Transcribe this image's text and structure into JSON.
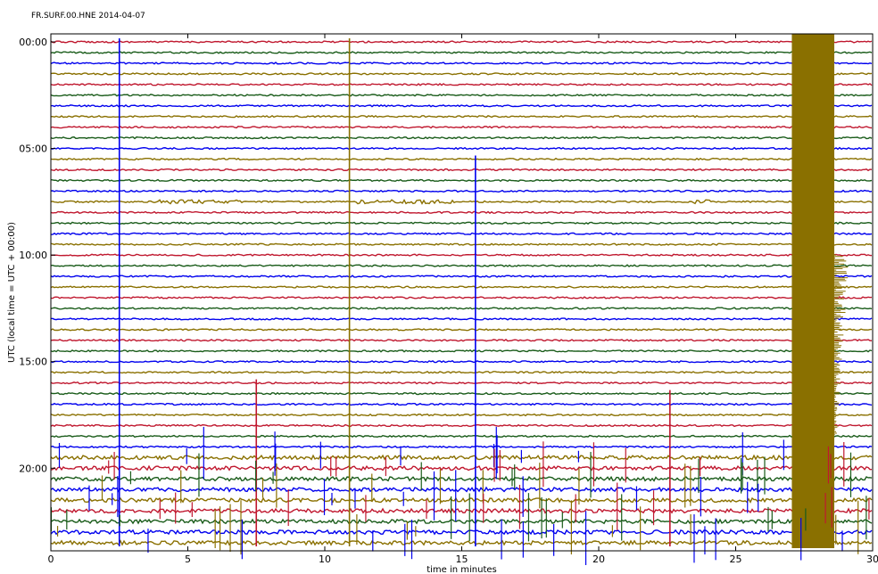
{
  "chart_data": {
    "type": "line",
    "title": "FR.SURF.00.HNE 2014-04-07",
    "xlabel": "time in minutes",
    "ylabel": "UTC (local time = UTC + 00:00)",
    "xlim": [
      0,
      30
    ],
    "xticks": [
      0,
      5,
      10,
      15,
      20,
      25,
      30
    ],
    "ylim_hours": [
      0,
      24
    ],
    "ytick_labels": [
      "00:00",
      "05:00",
      "10:00",
      "15:00",
      "20:00"
    ],
    "ytick_hours": [
      0,
      5,
      10,
      15,
      20
    ],
    "line_interval_minutes": 30,
    "line_count": 48,
    "colors": [
      "#c0182f",
      "#1a5c1a",
      "#0000ee",
      "#8a7000"
    ],
    "grid": false,
    "events": [
      {
        "x": 2.5,
        "row_start": 0,
        "row_end": 47,
        "color": "#0000ee",
        "amp": 1.0
      },
      {
        "x": 10.9,
        "row_start": 0,
        "row_end": 47,
        "color": "#8a7000",
        "amp": 1.0
      },
      {
        "x": 15.5,
        "row_start": 11,
        "row_end": 47,
        "color": "#0000ee",
        "amp": 1.0
      },
      {
        "x": 7.5,
        "row_start": 32,
        "row_end": 47,
        "color": "#c0182f",
        "amp": 0.8
      },
      {
        "x": 22.6,
        "row_start": 33,
        "row_end": 47,
        "color": "#c0182f",
        "amp": 0.8
      },
      {
        "x": 27.5,
        "row_start": 0,
        "row_end": 47,
        "color": "#8a7000",
        "amp": 1.0
      }
    ],
    "burst_rows": [
      {
        "row": 15,
        "from": 3.7,
        "to": 7.0,
        "color": "#0000ee"
      },
      {
        "row": 15,
        "from": 11.2,
        "to": 14.8,
        "color": "#0000ee"
      },
      {
        "row": 15,
        "from": 23.5,
        "to": 24.1,
        "color": "#0000ee"
      },
      {
        "row": 39,
        "from": 0,
        "to": 30,
        "color": "#0000ee"
      },
      {
        "row": 40,
        "from": 0,
        "to": 30,
        "color": "#c0182f"
      },
      {
        "row": 41,
        "from": 0,
        "to": 30,
        "color": "#1a5c1a"
      },
      {
        "row": 42,
        "from": 0,
        "to": 30,
        "color": "#8a7000"
      },
      {
        "row": 43,
        "from": 0,
        "to": 30,
        "color": "#0000ee"
      },
      {
        "row": 44,
        "from": 0,
        "to": 30,
        "color": "#c0182f"
      },
      {
        "row": 45,
        "from": 0,
        "to": 30,
        "color": "#1a5c1a"
      },
      {
        "row": 46,
        "from": 0,
        "to": 30,
        "color": "#8a7000"
      },
      {
        "row": 47,
        "from": 0,
        "to": 30,
        "color": "#0000ee"
      }
    ]
  }
}
